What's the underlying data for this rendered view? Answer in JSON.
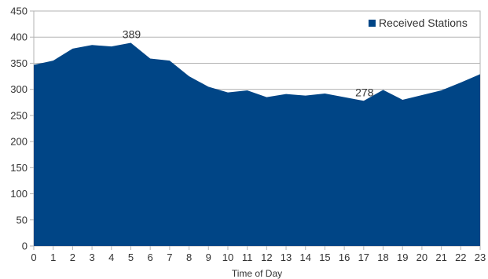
{
  "chart_data": {
    "type": "area",
    "x": [
      0,
      1,
      2,
      3,
      4,
      5,
      6,
      7,
      8,
      9,
      10,
      11,
      12,
      13,
      14,
      15,
      16,
      17,
      18,
      19,
      20,
      21,
      22,
      23
    ],
    "series": [
      {
        "name": "Received Stations",
        "values": [
          347,
          355,
          378,
          385,
          382,
          389,
          359,
          355,
          325,
          305,
          294,
          298,
          285,
          291,
          288,
          292,
          285,
          278,
          299,
          280,
          289,
          298,
          313,
          329
        ],
        "color": "#004586"
      }
    ],
    "xlabel": "Time of Day",
    "ylabel": "",
    "ylim": [
      0,
      450
    ],
    "yticks": [
      0,
      50,
      100,
      150,
      200,
      250,
      300,
      350,
      400,
      450
    ],
    "grid": true,
    "legend": "top-right",
    "annotations": [
      {
        "x": 5,
        "label": "389"
      },
      {
        "x": 17,
        "label": "278"
      }
    ]
  }
}
